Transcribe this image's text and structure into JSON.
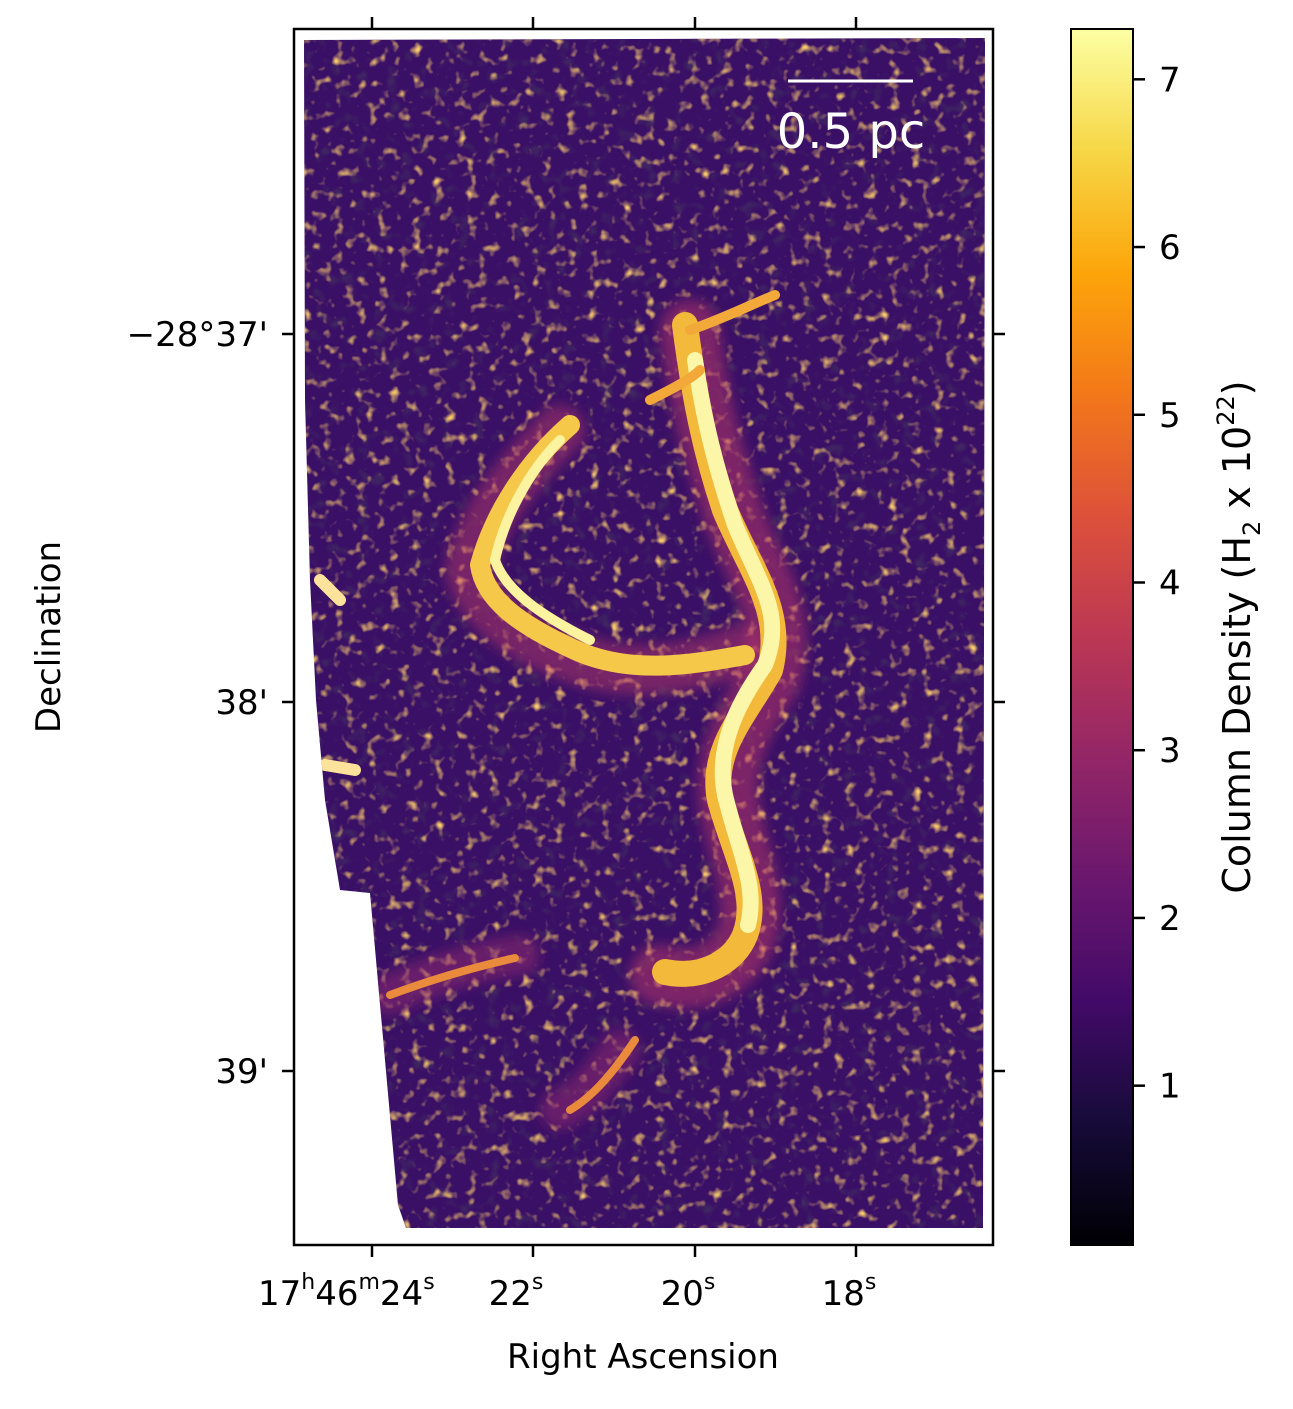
{
  "chart_data": {
    "type": "heatmap",
    "title": "",
    "xlabel": "Right Ascension",
    "ylabel": "Declination",
    "colormap": "inferno",
    "x_ticks": [
      {
        "h": "17",
        "m": "46",
        "s": "24",
        "label": "17h46m24s"
      },
      {
        "s": "22",
        "label": "22s"
      },
      {
        "s": "20",
        "label": "20s"
      },
      {
        "s": "18",
        "label": "18s"
      }
    ],
    "y_ticks": [
      {
        "label": "−28°37'"
      },
      {
        "label": "38'"
      },
      {
        "label": "39'"
      }
    ],
    "colorbar": {
      "label_prefix": "Column Density (H",
      "label_sub": "2",
      "label_mid": " x 10",
      "label_sup": "22",
      "label_suffix": ")",
      "range": [
        0.05,
        7.3
      ],
      "ticks": [
        "1",
        "2",
        "3",
        "4",
        "5",
        "6",
        "7"
      ],
      "tick_values": [
        1,
        2,
        3,
        4,
        5,
        6,
        7
      ]
    },
    "scalebar": {
      "label": "0.5 pc",
      "length": 0.5,
      "unit": "pc"
    },
    "grid": false
  },
  "colors": {
    "background": "#ffffff",
    "frame": "#000000",
    "map_dark": "#000004",
    "map_mid": "#7a1c6d",
    "map_bright": "#fcffa4",
    "scalebar": "#ffffff"
  }
}
